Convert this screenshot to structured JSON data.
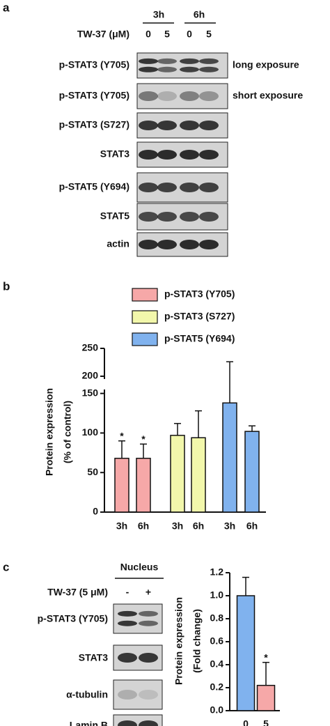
{
  "panel_labels": [
    "a",
    "b",
    "c"
  ],
  "blots_a": {
    "time_labels": [
      "3h",
      "6h"
    ],
    "treatment_label": "TW-37 (μM)",
    "doses": [
      "0",
      "5",
      "0",
      "5"
    ],
    "rows": [
      {
        "label": "p-STAT3 (Y705)",
        "note": "long exposure"
      },
      {
        "label": "p-STAT3 (Y705)",
        "note": "short exposure"
      },
      {
        "label": "p-STAT3 (S727)"
      },
      {
        "label": "STAT3"
      },
      {
        "label": "p-STAT5 (Y694)"
      },
      {
        "label": "STAT5"
      },
      {
        "label": "actin"
      }
    ]
  },
  "blots_c": {
    "header": "Nucleus",
    "treatment_label": "TW-37 (5 μM)",
    "doses": [
      "-",
      "+"
    ],
    "rows": [
      {
        "label": "p-STAT3 (Y705)"
      },
      {
        "label": "STAT3"
      },
      {
        "label": "α-tubulin"
      },
      {
        "label": "Lamin B"
      }
    ]
  },
  "chart_data": [
    {
      "type": "bar",
      "ylabel": [
        "Protein expression",
        "(% of control)"
      ],
      "categories": [
        "3h",
        "6h"
      ],
      "series": [
        {
          "name": "p-STAT3 (Y705)",
          "color": "#f6a8a8",
          "values": [
            68,
            68
          ],
          "errors": [
            22,
            18
          ],
          "annotations": [
            "*",
            "*"
          ]
        },
        {
          "name": "p-STAT3 (S727)",
          "color": "#f2f7ab",
          "values": [
            97,
            94
          ],
          "errors": [
            15,
            34
          ]
        },
        {
          "name": "p-STAT5 (Y694)",
          "color": "#80b2ee",
          "values": [
            138,
            102
          ],
          "errors": [
            88,
            7
          ]
        }
      ],
      "ylim_segments": [
        [
          0,
          155
        ],
        [
          195,
          250
        ]
      ],
      "yticks": [
        0,
        50,
        100,
        150,
        200,
        250
      ]
    },
    {
      "type": "bar",
      "ylabel": [
        "Protein expression",
        "(Fold change)"
      ],
      "categories": [
        "0",
        "5"
      ],
      "values": [
        1.0,
        0.22
      ],
      "errors": [
        0.16,
        0.2
      ],
      "colors": [
        "#80b2ee",
        "#f6a8a8"
      ],
      "annotations": [
        null,
        "*"
      ],
      "ylim": [
        0,
        1.2
      ],
      "yticks": [
        {
          "value": 0,
          "label": "0.0"
        },
        {
          "value": 0.2,
          "label": "0.2"
        },
        {
          "value": 0.4,
          "label": "0.4"
        },
        {
          "value": 0.6,
          "label": "0.6"
        },
        {
          "value": 0.8,
          "label": "0.8"
        },
        {
          "value": 1,
          "label": "1.0"
        },
        {
          "value": 1.2,
          "label": "1.2"
        }
      ]
    }
  ]
}
